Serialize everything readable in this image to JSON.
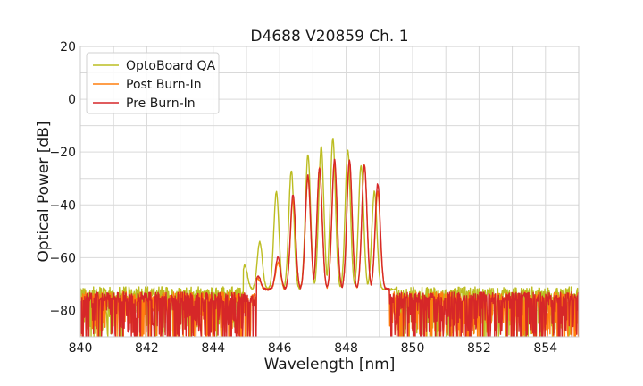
{
  "chart_data": {
    "type": "line",
    "title": "D4688 V20859 Ch. 1",
    "xlabel": "Wavelength [nm]",
    "ylabel": "Optical Power [dB]",
    "xlim": [
      840,
      855
    ],
    "ylim": [
      -90,
      20
    ],
    "xticks": [
      840,
      842,
      844,
      846,
      848,
      850,
      852,
      854
    ],
    "yticks": [
      20,
      0,
      -20,
      -40,
      -60,
      -80
    ],
    "xtick_labels": [
      "840",
      "842",
      "844",
      "846",
      "848",
      "850",
      "852",
      "854"
    ],
    "ytick_labels": [
      "20",
      "0",
      "−20",
      "−40",
      "−60",
      "−80"
    ],
    "grid": true,
    "legend_position": "top-left",
    "series": [
      {
        "name": "OptoBoard QA",
        "color": "#bcbd22",
        "noise_floor": -73,
        "noise_range": [
          840.0,
          844.9,
          849.5,
          855.0
        ],
        "peaks": [
          {
            "x": 844.95,
            "y": -63
          },
          {
            "x": 845.4,
            "y": -54
          },
          {
            "x": 845.9,
            "y": -35
          },
          {
            "x": 846.35,
            "y": -27
          },
          {
            "x": 846.85,
            "y": -21
          },
          {
            "x": 847.25,
            "y": -18
          },
          {
            "x": 847.6,
            "y": -15
          },
          {
            "x": 848.05,
            "y": -19
          },
          {
            "x": 848.45,
            "y": -25
          },
          {
            "x": 848.85,
            "y": -35
          }
        ]
      },
      {
        "name": "Post Burn-In",
        "color": "#ff7f0e",
        "noise_floor": -75,
        "noise_range": [
          840.0,
          845.3,
          849.3,
          855.0
        ],
        "peaks": [
          {
            "x": 845.35,
            "y": -68
          },
          {
            "x": 845.95,
            "y": -62
          },
          {
            "x": 846.4,
            "y": -38
          },
          {
            "x": 846.85,
            "y": -30
          },
          {
            "x": 847.2,
            "y": -26
          },
          {
            "x": 847.65,
            "y": -24
          },
          {
            "x": 848.1,
            "y": -24
          },
          {
            "x": 848.55,
            "y": -25
          },
          {
            "x": 848.95,
            "y": -35
          }
        ]
      },
      {
        "name": "Pre Burn-In",
        "color": "#d62728",
        "noise_floor": -75,
        "noise_range": [
          840.0,
          845.3,
          849.3,
          855.0
        ],
        "peaks": [
          {
            "x": 845.35,
            "y": -67
          },
          {
            "x": 845.95,
            "y": -60
          },
          {
            "x": 846.4,
            "y": -36
          },
          {
            "x": 846.85,
            "y": -29
          },
          {
            "x": 847.2,
            "y": -26
          },
          {
            "x": 847.65,
            "y": -23
          },
          {
            "x": 848.1,
            "y": -23
          },
          {
            "x": 848.55,
            "y": -25
          },
          {
            "x": 848.95,
            "y": -32
          }
        ]
      }
    ]
  }
}
